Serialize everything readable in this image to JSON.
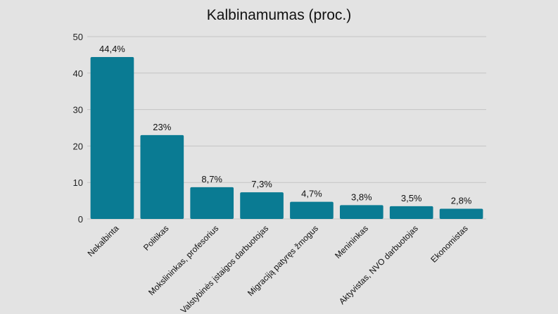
{
  "chart_data": {
    "type": "bar",
    "title": "Kalbinamumas (proc.)",
    "xlabel": "",
    "ylabel": "",
    "categories": [
      "Nekalbinta",
      "Politikas",
      "Mokslininkas, profesorius",
      "Valstybinės įstaigos darbuotojas",
      "Migraciją patyręs žmogus",
      "Menininkas",
      "Aktyvistas, NVO darbuotojas",
      "Ekonomistas"
    ],
    "values": [
      44.4,
      23,
      8.7,
      7.3,
      4.7,
      3.8,
      3.5,
      2.8
    ],
    "data_labels": [
      "44,4%",
      "23%",
      "8,7%",
      "7,3%",
      "4,7%",
      "3,8%",
      "3,5%",
      "2,8%"
    ],
    "ylim": [
      0,
      50
    ],
    "yticks": [
      0,
      10,
      20,
      30,
      40,
      50
    ],
    "grid": true,
    "bar_color": "#0a7b93",
    "grid_color": "#c4c4c4",
    "legend": "none"
  }
}
